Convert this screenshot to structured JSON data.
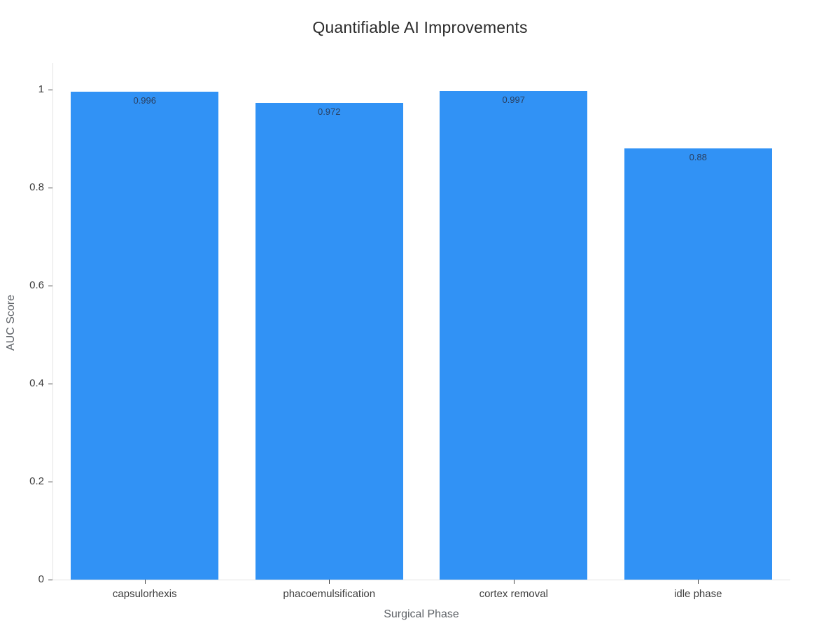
{
  "chart_data": {
    "type": "bar",
    "title": "Quantifiable AI Improvements",
    "xlabel": "Surgical Phase",
    "ylabel": "AUC Score",
    "categories": [
      "capsulorhexis",
      "phacoemulsification",
      "cortex removal",
      "idle phase"
    ],
    "values": [
      0.996,
      0.972,
      0.997,
      0.88
    ],
    "data_labels": [
      "0.996",
      "0.972",
      "0.997",
      "0.88"
    ],
    "y_ticks": [
      {
        "value": 0,
        "label": "0"
      },
      {
        "value": 0.2,
        "label": "0.2"
      },
      {
        "value": 0.4,
        "label": "0.4"
      },
      {
        "value": 0.6,
        "label": "0.6"
      },
      {
        "value": 0.8,
        "label": "0.8"
      },
      {
        "value": 1,
        "label": "1"
      }
    ],
    "ylim": [
      0,
      1.054
    ],
    "grid": false,
    "legend": "none",
    "colors": {
      "bar": "#3192f5",
      "bar_label_text": "#2a3f5f",
      "axis_line": "#e2e2e2",
      "tick_mark": "#444444",
      "tick_label_text": "#3d3d3d",
      "axis_title_text": "#5f6368",
      "title_text": "#2b2b2b",
      "background": "#ffffff"
    }
  }
}
